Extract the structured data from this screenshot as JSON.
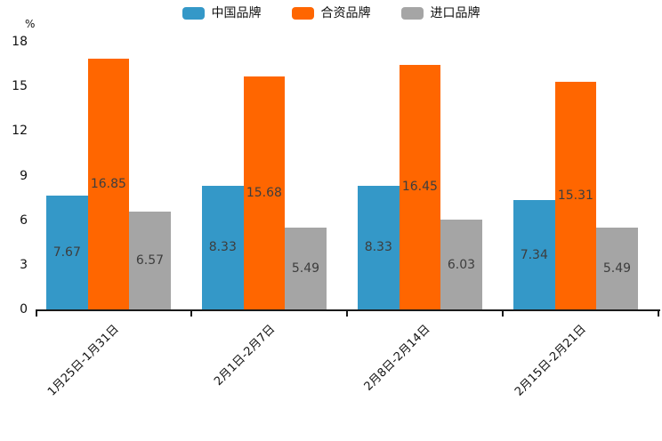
{
  "chart_data": {
    "type": "bar",
    "categories": [
      "1月25日-1月31日",
      "2月1日-2月7日",
      "2月8日-2月14日",
      "2月15日-2月21日"
    ],
    "series": [
      {
        "name": "中国品牌",
        "color": "#3498c8",
        "values": [
          7.67,
          8.33,
          8.33,
          7.34
        ]
      },
      {
        "name": "合资品牌",
        "color": "#ff6600",
        "values": [
          16.85,
          15.68,
          16.45,
          15.31
        ]
      },
      {
        "name": "进口品牌",
        "color": "#a5a5a5",
        "values": [
          6.57,
          5.49,
          6.03,
          5.49
        ]
      }
    ],
    "title": "",
    "xlabel": "",
    "ylabel": "%",
    "ylim": [
      0,
      18
    ],
    "yticks": [
      0,
      3,
      6,
      9,
      12,
      15,
      18
    ],
    "legend_position": "top",
    "grid": false,
    "value_labels_decimals": 2,
    "value_label_color": "#3d3d3d",
    "axis_color": "#1a1a1a",
    "text_color": "#111111"
  }
}
